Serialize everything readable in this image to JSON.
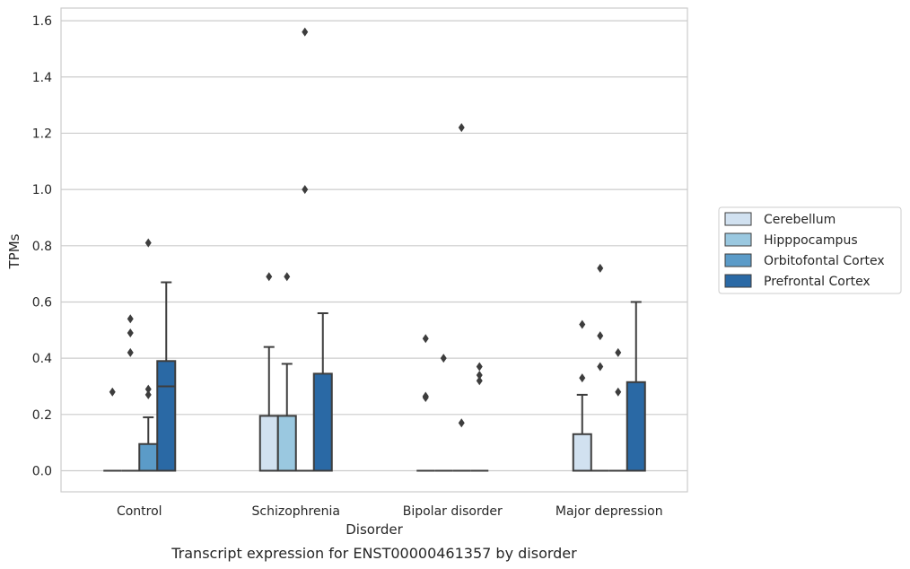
{
  "chart_data": {
    "type": "box",
    "title": "",
    "caption": "Transcript expression for ENST00000461357 by disorder",
    "xlabel": "Disorder",
    "ylabel": "TPMs",
    "ylim": [
      -0.075,
      1.645
    ],
    "yticks": [
      "0.0",
      "0.2",
      "0.4",
      "0.6",
      "0.8",
      "1.0",
      "1.2",
      "1.4",
      "1.6"
    ],
    "ytick_values": [
      0,
      0.2,
      0.4,
      0.6,
      0.8,
      1.0,
      1.2,
      1.4,
      1.6
    ],
    "grid": true,
    "legend_position": "right",
    "categories": [
      "Control",
      "Schizophrenia",
      "Bipolar disorder",
      "Major depression"
    ],
    "series": [
      {
        "name": "Cerebellum",
        "color": "#d1e1f0",
        "boxes": [
          {
            "q1": 0,
            "median": 0,
            "q3": 0,
            "whisker_low": 0,
            "whisker_high": 0,
            "outliers": [
              0.28
            ]
          },
          {
            "q1": 0,
            "median": 0,
            "q3": 0.195,
            "whisker_low": 0,
            "whisker_high": 0.44,
            "outliers": [
              0.69
            ]
          },
          {
            "q1": 0,
            "median": 0,
            "q3": 0,
            "whisker_low": 0,
            "whisker_high": 0,
            "outliers": [
              0.26,
              0.265,
              0.47
            ]
          },
          {
            "q1": 0,
            "median": 0,
            "q3": 0.13,
            "whisker_low": 0,
            "whisker_high": 0.27,
            "outliers": [
              0.33,
              0.52
            ]
          }
        ]
      },
      {
        "name": "Hipppocampus",
        "color": "#9ac8e0",
        "boxes": [
          {
            "q1": 0,
            "median": 0,
            "q3": 0,
            "whisker_low": 0,
            "whisker_high": 0,
            "outliers": [
              0.42,
              0.49,
              0.54
            ]
          },
          {
            "q1": 0,
            "median": 0,
            "q3": 0.195,
            "whisker_low": 0,
            "whisker_high": 0.38,
            "outliers": [
              0.69
            ]
          },
          {
            "q1": 0,
            "median": 0,
            "q3": 0,
            "whisker_low": 0,
            "whisker_high": 0,
            "outliers": [
              0.4
            ]
          },
          {
            "q1": 0,
            "median": 0,
            "q3": 0,
            "whisker_low": 0,
            "whisker_high": 0,
            "outliers": [
              0.37,
              0.48,
              0.72
            ]
          }
        ]
      },
      {
        "name": "Orbitofontal Cortex",
        "color": "#5b9bc8",
        "boxes": [
          {
            "q1": 0,
            "median": 0,
            "q3": 0.095,
            "whisker_low": 0,
            "whisker_high": 0.19,
            "outliers": [
              0.27,
              0.29,
              0.81
            ]
          },
          {
            "q1": 0,
            "median": 0,
            "q3": 0,
            "whisker_low": 0,
            "whisker_high": 0,
            "outliers": [
              1.0,
              1.56
            ]
          },
          {
            "q1": 0,
            "median": 0,
            "q3": 0,
            "whisker_low": 0,
            "whisker_high": 0,
            "outliers": [
              0.17,
              1.22
            ]
          },
          {
            "q1": 0,
            "median": 0,
            "q3": 0,
            "whisker_low": 0,
            "whisker_high": 0,
            "outliers": [
              0.28,
              0.42
            ]
          }
        ]
      },
      {
        "name": "Prefrontal Cortex",
        "color": "#2a69a5",
        "boxes": [
          {
            "q1": 0,
            "median": 0.3,
            "q3": 0.39,
            "whisker_low": 0,
            "whisker_high": 0.67,
            "outliers": []
          },
          {
            "q1": 0,
            "median": 0,
            "q3": 0.345,
            "whisker_low": 0,
            "whisker_high": 0.56,
            "outliers": []
          },
          {
            "q1": 0,
            "median": 0,
            "q3": 0,
            "whisker_low": 0,
            "whisker_high": 0,
            "outliers": [
              0.32,
              0.34,
              0.37
            ]
          },
          {
            "q1": 0,
            "median": 0,
            "q3": 0.315,
            "whisker_low": 0,
            "whisker_high": 0.6,
            "outliers": []
          }
        ]
      }
    ]
  }
}
